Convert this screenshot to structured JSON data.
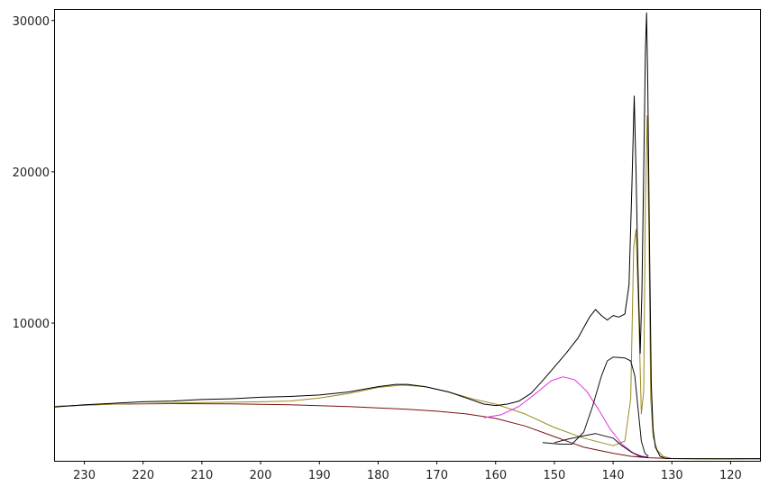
{
  "chart_data": {
    "type": "line",
    "title": "",
    "xlabel": "",
    "ylabel": "",
    "x_reversed": true,
    "xlim": [
      235,
      115
    ],
    "ylim": [
      900,
      30700
    ],
    "grid": false,
    "legend": "none",
    "x_ticks": [
      {
        "value": 230,
        "label": "230"
      },
      {
        "value": 220,
        "label": "220"
      },
      {
        "value": 210,
        "label": "210"
      },
      {
        "value": 200,
        "label": "200"
      },
      {
        "value": 190,
        "label": "190"
      },
      {
        "value": 180,
        "label": "180"
      },
      {
        "value": 170,
        "label": "170"
      },
      {
        "value": 160,
        "label": "160"
      },
      {
        "value": 150,
        "label": "150"
      },
      {
        "value": 140,
        "label": "140"
      },
      {
        "value": 130,
        "label": "130"
      },
      {
        "value": 120,
        "label": "120"
      }
    ],
    "y_ticks": [
      {
        "value": 10000,
        "label": "10000"
      },
      {
        "value": 20000,
        "label": "20000"
      },
      {
        "value": 30000,
        "label": "30000"
      }
    ],
    "series": [
      {
        "key": "background",
        "color": "#7a1010",
        "points": [
          [
            235,
            4500
          ],
          [
            225,
            4650
          ],
          [
            215,
            4680
          ],
          [
            205,
            4660
          ],
          [
            195,
            4600
          ],
          [
            185,
            4480
          ],
          [
            175,
            4300
          ],
          [
            170,
            4180
          ],
          [
            165,
            4000
          ],
          [
            160,
            3700
          ],
          [
            155,
            3200
          ],
          [
            150,
            2500
          ],
          [
            145,
            1800
          ],
          [
            140,
            1400
          ],
          [
            137,
            1200
          ],
          [
            134,
            1100
          ],
          [
            130,
            1050
          ],
          [
            120,
            1030
          ],
          [
            115,
            1030
          ]
        ]
      },
      {
        "key": "envelope-fit",
        "color": "#9a8a20",
        "points": [
          [
            235,
            4500
          ],
          [
            225,
            4650
          ],
          [
            215,
            4720
          ],
          [
            205,
            4770
          ],
          [
            200,
            4800
          ],
          [
            195,
            4850
          ],
          [
            190,
            5050
          ],
          [
            185,
            5350
          ],
          [
            180,
            5750
          ],
          [
            176,
            5900
          ],
          [
            172,
            5800
          ],
          [
            168,
            5450
          ],
          [
            164,
            5000
          ],
          [
            160,
            4650
          ],
          [
            155,
            4000
          ],
          [
            150,
            3100
          ],
          [
            145,
            2400
          ],
          [
            140,
            1900
          ],
          [
            138,
            2200
          ],
          [
            137,
            5000
          ],
          [
            136.5,
            15000
          ],
          [
            136.1,
            16200
          ],
          [
            135.6,
            10000
          ],
          [
            135.2,
            4000
          ],
          [
            134.8,
            5500
          ],
          [
            134.5,
            18000
          ],
          [
            134.2,
            23700
          ],
          [
            133.9,
            16000
          ],
          [
            133.6,
            5000
          ],
          [
            133.2,
            2500
          ],
          [
            132.5,
            1600
          ],
          [
            131.5,
            1200
          ],
          [
            130,
            1050
          ],
          [
            115,
            1030
          ]
        ]
      },
      {
        "key": "component-magenta",
        "color": "#dd33dd",
        "points": [
          [
            162,
            3750
          ],
          [
            159,
            3950
          ],
          [
            156,
            4500
          ],
          [
            153,
            5400
          ],
          [
            150.5,
            6200
          ],
          [
            148.5,
            6450
          ],
          [
            146.5,
            6250
          ],
          [
            144.5,
            5500
          ],
          [
            142.5,
            4300
          ],
          [
            140.5,
            3000
          ],
          [
            138.5,
            2000
          ],
          [
            136.5,
            1400
          ],
          [
            135,
            1200
          ],
          [
            134,
            1150
          ]
        ]
      },
      {
        "key": "component-black-1",
        "color": "#111111",
        "points": [
          [
            152,
            2100
          ],
          [
            149,
            2000
          ],
          [
            147,
            2000
          ],
          [
            145,
            2800
          ],
          [
            143.5,
            4500
          ],
          [
            142,
            6500
          ],
          [
            141,
            7500
          ],
          [
            140,
            7750
          ],
          [
            138,
            7700
          ],
          [
            137,
            7500
          ],
          [
            136.3,
            6500
          ],
          [
            135.8,
            4500
          ],
          [
            135.2,
            2200
          ],
          [
            134.6,
            1400
          ],
          [
            134,
            1200
          ]
        ]
      },
      {
        "key": "component-black-2",
        "color": "#111111",
        "points": [
          [
            150,
            2100
          ],
          [
            147.5,
            2350
          ],
          [
            145,
            2550
          ],
          [
            143,
            2700
          ],
          [
            141.5,
            2550
          ],
          [
            140,
            2400
          ],
          [
            138.5,
            1900
          ],
          [
            137,
            1500
          ],
          [
            135.5,
            1200
          ],
          [
            134,
            1100
          ]
        ]
      },
      {
        "key": "measured",
        "color": "#000000",
        "points": [
          [
            235,
            4450
          ],
          [
            230,
            4600
          ],
          [
            225,
            4700
          ],
          [
            220,
            4800
          ],
          [
            215,
            4850
          ],
          [
            210,
            4950
          ],
          [
            205,
            5000
          ],
          [
            200,
            5100
          ],
          [
            195,
            5150
          ],
          [
            190,
            5250
          ],
          [
            185,
            5450
          ],
          [
            180,
            5800
          ],
          [
            177,
            5950
          ],
          [
            175,
            5950
          ],
          [
            172,
            5800
          ],
          [
            168,
            5450
          ],
          [
            165,
            5050
          ],
          [
            162,
            4650
          ],
          [
            160,
            4550
          ],
          [
            158,
            4650
          ],
          [
            156,
            4850
          ],
          [
            154,
            5350
          ],
          [
            152,
            6200
          ],
          [
            150,
            7100
          ],
          [
            148,
            8000
          ],
          [
            146,
            9000
          ],
          [
            144,
            10400
          ],
          [
            143,
            10900
          ],
          [
            142,
            10500
          ],
          [
            141,
            10200
          ],
          [
            140,
            10500
          ],
          [
            139,
            10400
          ],
          [
            138,
            10600
          ],
          [
            137.3,
            12500
          ],
          [
            136.8,
            19000
          ],
          [
            136.4,
            25000
          ],
          [
            136.1,
            20000
          ],
          [
            135.8,
            14000
          ],
          [
            135.4,
            8000
          ],
          [
            135.1,
            12000
          ],
          [
            134.8,
            20000
          ],
          [
            134.5,
            28000
          ],
          [
            134.3,
            30500
          ],
          [
            134.1,
            26000
          ],
          [
            133.8,
            15000
          ],
          [
            133.5,
            6000
          ],
          [
            133.2,
            3000
          ],
          [
            132.8,
            1800
          ],
          [
            132,
            1200
          ],
          [
            131,
            1050
          ],
          [
            125,
            1030
          ],
          [
            120,
            1030
          ],
          [
            115,
            1040
          ]
        ]
      }
    ]
  }
}
